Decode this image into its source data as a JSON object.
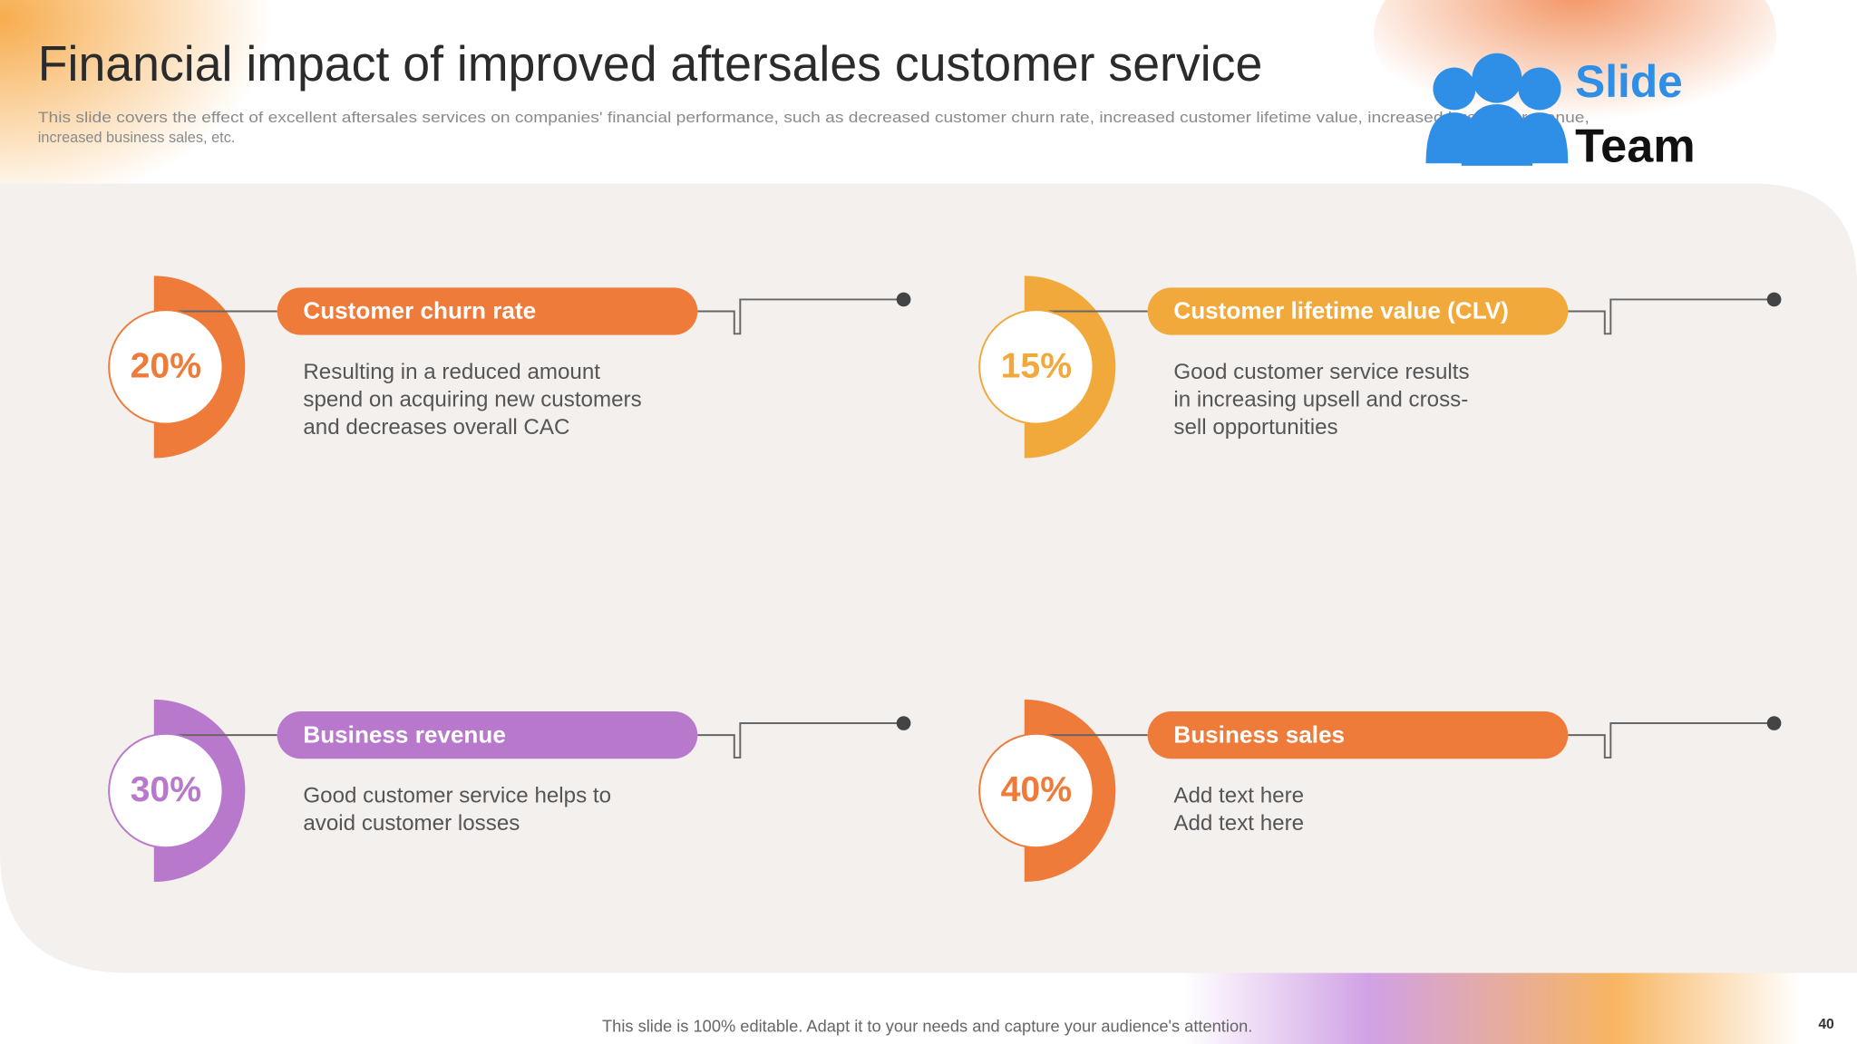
{
  "header": {
    "title": "Financial impact of improved aftersales customer service",
    "subtitle": [
      "This slide covers the effect of excellent aftersales services on companies' financial performance, such as decreased customer churn rate, increased customer lifetime value, increased business revenue,",
      "increased business sales, etc."
    ]
  },
  "logo": {
    "line1": "Slide",
    "line2": "Team"
  },
  "cards": [
    {
      "percent": "20%",
      "title": "Customer  churn rate",
      "lines": [
        "Resulting  in a reduced amount",
        "spend on acquiring new customers",
        "and decreases overall CAC"
      ]
    },
    {
      "percent": "15%",
      "title": "Customer lifetime value (CLV)",
      "lines": [
        "Good customer  service results",
        "in increasing upsell and cross-",
        "sell opportunities"
      ]
    },
    {
      "percent": "30%",
      "title": "Business revenue",
      "lines": [
        "Good customer  service helps to",
        "avoid customer losses"
      ]
    },
    {
      "percent": "40%",
      "title": "Business sales",
      "lines": [
        "Add text here",
        "Add text here"
      ]
    }
  ],
  "footer": {
    "note": "This slide is 100% editable. Adapt it to your needs and capture your audience's attention.",
    "page": "40"
  }
}
